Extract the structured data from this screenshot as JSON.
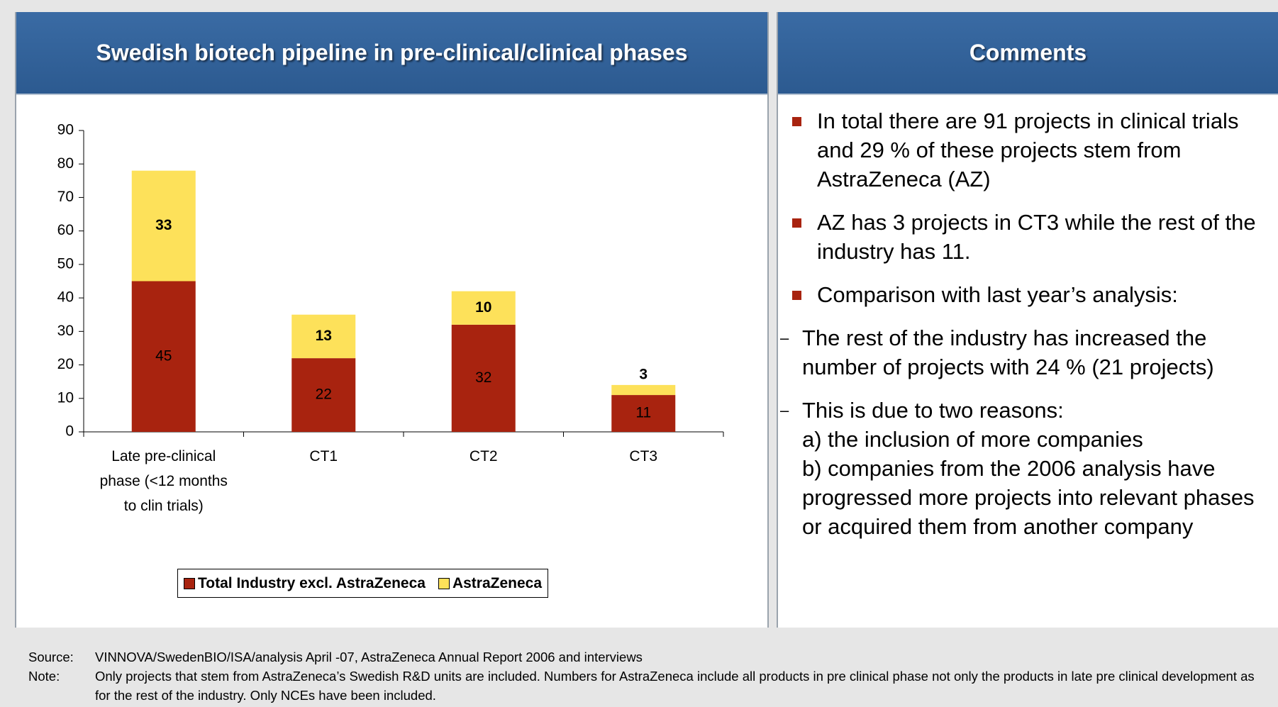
{
  "chart_data": {
    "type": "stacked_bar",
    "title": "Swedish biotech pipeline in pre-clinical/clinical phases",
    "categories": [
      "Late pre-clinical phase (<12 months to clin trials)",
      "CT1",
      "CT2",
      "CT3"
    ],
    "series": [
      {
        "name": "Total Industry excl. AstraZeneca",
        "color": "#a8230f",
        "values": [
          45,
          22,
          32,
          11
        ]
      },
      {
        "name": "AstraZeneca",
        "color": "#fde15a",
        "values": [
          33,
          13,
          10,
          3
        ]
      }
    ],
    "ylim": [
      0,
      90
    ],
    "yticks": [
      0,
      10,
      20,
      30,
      40,
      50,
      60,
      70,
      80,
      90
    ],
    "legend": "bottom"
  },
  "comments": {
    "title": "Comments",
    "bullets": [
      {
        "text": "In total there are 91 projects in clinical trials and 29 % of these projects stem from AstraZeneca (AZ)"
      },
      {
        "text": "AZ has 3 projects in CT3 while the rest of the industry has 11."
      },
      {
        "text": "Comparison with last year’s analysis:",
        "sub": [
          "The rest of the industry has increased the number of projects with 24 % (21 projects)",
          "This is due to two reasons:\na) the inclusion of more companies\nb) companies from the 2006 analysis have progressed more projects into relevant phases or acquired them from another company"
        ]
      }
    ]
  },
  "footer": {
    "source_label": "Source:",
    "source": "VINNOVA/SwedenBIO/ISA/analysis April -07, AstraZeneca Annual Report 2006 and interviews",
    "note_label": "Note:",
    "note": "Only projects that stem from AstraZeneca’s Swedish R&D units are included. Numbers for AstraZeneca include all products in pre clinical phase not only the products in late pre clinical development as for the rest of the industry. Only NCEs have been included."
  }
}
